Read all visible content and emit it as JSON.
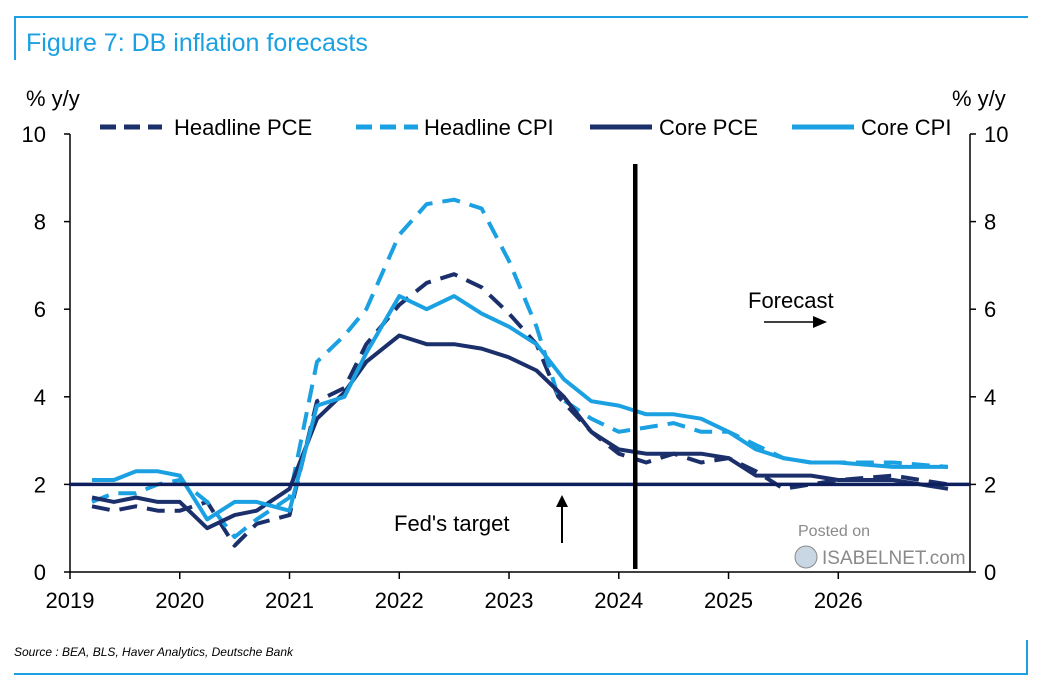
{
  "figure_title": "Figure 7: DB inflation forecasts",
  "source": "Source : BEA, BLS, Haver Analytics, Deutsche Bank",
  "watermark": {
    "line1": "Posted on",
    "line2": "ISABELNET.com"
  },
  "colors": {
    "frame": "#1ba1e2",
    "dark_navy": "#1b2f6b",
    "light_blue": "#1ba1e2",
    "target": "#0d1f5c"
  },
  "chart_data": {
    "type": "line",
    "title": "Figure 7: DB inflation forecasts",
    "ylabel_left": "% y/y",
    "ylabel_right": "% y/y",
    "xlim": [
      2019,
      2027.2
    ],
    "ylim": [
      0,
      10
    ],
    "x_ticks": [
      "2019",
      "2020",
      "2021",
      "2022",
      "2023",
      "2024",
      "2025",
      "2026"
    ],
    "x_tick_values": [
      2019,
      2020,
      2021,
      2022,
      2023,
      2024,
      2025,
      2026
    ],
    "y_ticks": [
      "0",
      "2",
      "4",
      "6",
      "8",
      "10"
    ],
    "y_tick_values": [
      0,
      2,
      4,
      6,
      8,
      10
    ],
    "legend_position": "top",
    "series": [
      {
        "name": "Headline PCE",
        "style": "dashed",
        "color": "#1b2f6b",
        "x": [
          2019.2,
          2019.4,
          2019.6,
          2019.8,
          2020.0,
          2020.25,
          2020.5,
          2020.7,
          2021.0,
          2021.25,
          2021.5,
          2021.7,
          2022.0,
          2022.25,
          2022.5,
          2022.75,
          2023.0,
          2023.25,
          2023.45,
          2023.75,
          2024.0,
          2024.25,
          2024.5,
          2024.75,
          2025.0,
          2025.25,
          2025.5,
          2025.75,
          2026.0,
          2026.5,
          2027.0
        ],
        "values": [
          1.5,
          1.4,
          1.5,
          1.4,
          1.4,
          1.6,
          0.6,
          1.1,
          1.3,
          3.9,
          4.2,
          5.2,
          6.1,
          6.6,
          6.8,
          6.5,
          5.9,
          5.2,
          4.0,
          3.2,
          2.7,
          2.5,
          2.7,
          2.5,
          2.6,
          2.3,
          1.9,
          2.0,
          2.1,
          2.2,
          2.0
        ]
      },
      {
        "name": "Headline CPI",
        "style": "dashed",
        "color": "#1ba1e2",
        "x": [
          2019.2,
          2019.4,
          2019.6,
          2019.8,
          2020.0,
          2020.25,
          2020.5,
          2020.7,
          2021.0,
          2021.25,
          2021.5,
          2021.7,
          2022.0,
          2022.25,
          2022.5,
          2022.75,
          2023.0,
          2023.25,
          2023.45,
          2023.75,
          2024.0,
          2024.25,
          2024.5,
          2024.75,
          2025.0,
          2025.25,
          2025.5,
          2025.75,
          2026.0,
          2026.5,
          2027.0
        ],
        "values": [
          1.6,
          1.8,
          1.8,
          2.0,
          2.1,
          1.6,
          0.8,
          1.2,
          1.7,
          4.8,
          5.4,
          6.0,
          7.7,
          8.4,
          8.5,
          8.3,
          7.1,
          5.6,
          4.0,
          3.5,
          3.2,
          3.3,
          3.4,
          3.2,
          3.2,
          2.9,
          2.6,
          2.5,
          2.5,
          2.5,
          2.4
        ]
      },
      {
        "name": "Core PCE",
        "style": "solid",
        "color": "#1b2f6b",
        "x": [
          2019.2,
          2019.4,
          2019.6,
          2019.8,
          2020.0,
          2020.25,
          2020.5,
          2020.7,
          2021.0,
          2021.25,
          2021.5,
          2021.7,
          2022.0,
          2022.25,
          2022.5,
          2022.75,
          2023.0,
          2023.25,
          2023.5,
          2023.75,
          2024.0,
          2024.25,
          2024.5,
          2024.75,
          2025.0,
          2025.25,
          2025.5,
          2025.75,
          2026.0,
          2026.5,
          2027.0
        ],
        "values": [
          1.7,
          1.6,
          1.7,
          1.6,
          1.6,
          1.0,
          1.3,
          1.4,
          1.9,
          3.5,
          4.1,
          4.8,
          5.4,
          5.2,
          5.2,
          5.1,
          4.9,
          4.6,
          4.0,
          3.2,
          2.8,
          2.7,
          2.7,
          2.7,
          2.6,
          2.2,
          2.2,
          2.2,
          2.1,
          2.1,
          1.9
        ]
      },
      {
        "name": "Core CPI",
        "style": "solid",
        "color": "#1ba1e2",
        "x": [
          2019.2,
          2019.4,
          2019.6,
          2019.8,
          2020.0,
          2020.25,
          2020.5,
          2020.7,
          2021.0,
          2021.25,
          2021.5,
          2021.7,
          2022.0,
          2022.25,
          2022.5,
          2022.75,
          2023.0,
          2023.25,
          2023.5,
          2023.75,
          2024.0,
          2024.25,
          2024.5,
          2024.75,
          2025.0,
          2025.25,
          2025.5,
          2025.75,
          2026.0,
          2026.5,
          2027.0
        ],
        "values": [
          2.1,
          2.1,
          2.3,
          2.3,
          2.2,
          1.2,
          1.6,
          1.6,
          1.4,
          3.8,
          4.0,
          5.0,
          6.3,
          6.0,
          6.3,
          5.9,
          5.6,
          5.2,
          4.4,
          3.9,
          3.8,
          3.6,
          3.6,
          3.5,
          3.2,
          2.8,
          2.6,
          2.5,
          2.5,
          2.4,
          2.4
        ]
      }
    ],
    "target_line": {
      "label": "Fed's target",
      "value": 2,
      "color": "#0d1f5c"
    },
    "forecast_divider": {
      "x": 2024.15,
      "label": "Forecast"
    }
  }
}
